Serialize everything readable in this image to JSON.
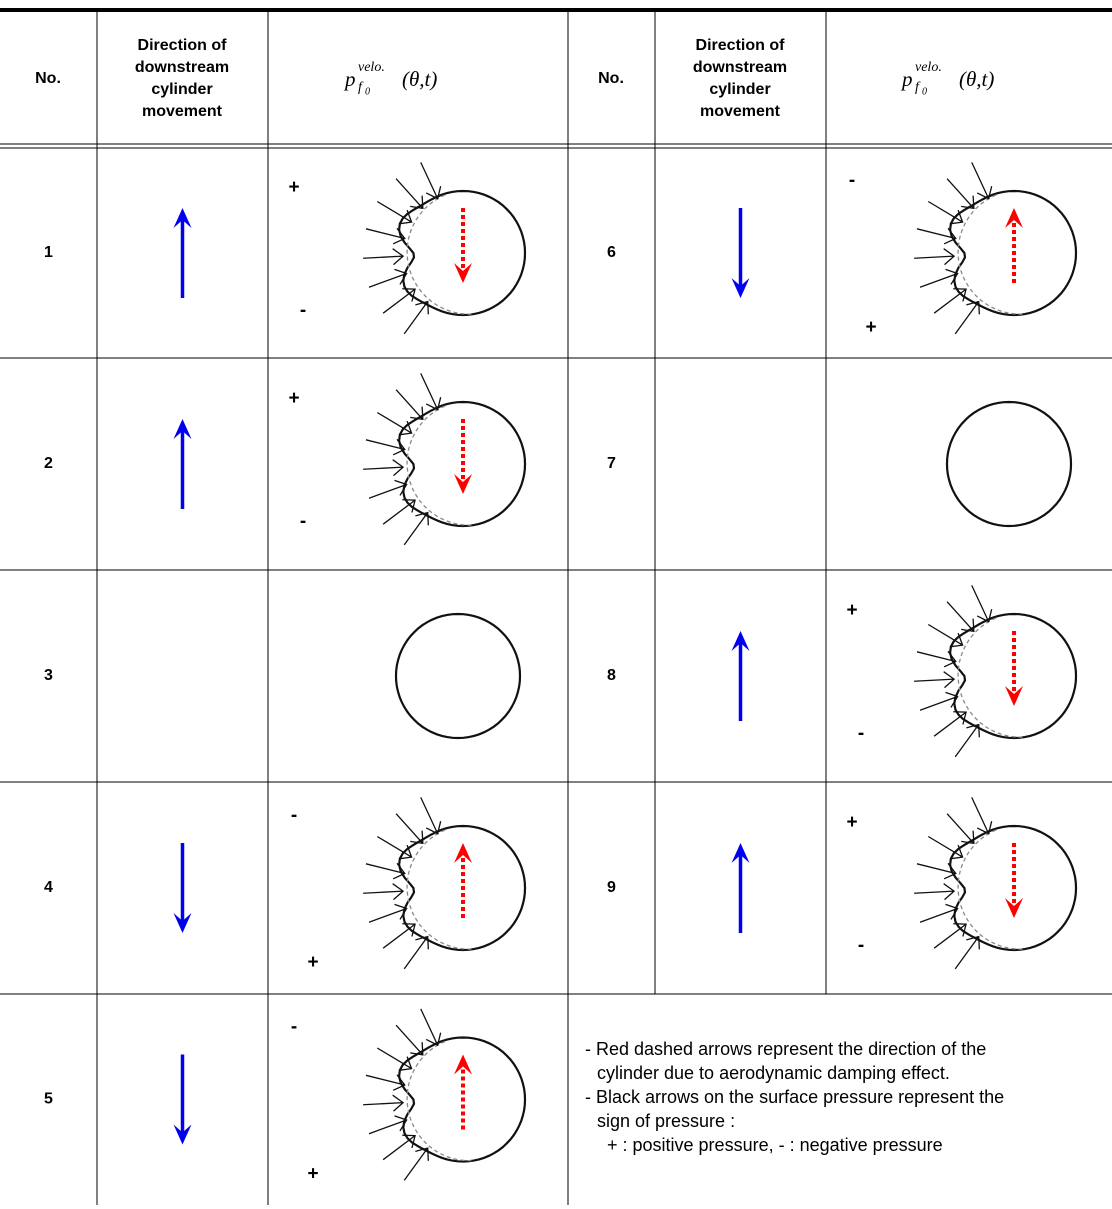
{
  "header": {
    "no": "No.",
    "direction": [
      "Direction of",
      "downstream",
      "cylinder",
      "movement"
    ],
    "formula": {
      "base": "p",
      "sup": "velo.",
      "sub": "f",
      "subsub": "0",
      "args": "(θ,t)"
    }
  },
  "rows": [
    {
      "no": "1",
      "top_sign": "+",
      "bottom_sign": "-"
    },
    {
      "no": "2",
      "top_sign": "+",
      "bottom_sign": "-"
    },
    {
      "no": "3"
    },
    {
      "no": "4",
      "top_sign": "-",
      "bottom_sign": "+"
    },
    {
      "no": "5",
      "top_sign": "-",
      "bottom_sign": "+"
    },
    {
      "no": "6",
      "top_sign": "-",
      "bottom_sign": "+"
    },
    {
      "no": "7"
    },
    {
      "no": "8",
      "top_sign": "+",
      "bottom_sign": "-"
    },
    {
      "no": "9",
      "top_sign": "+",
      "bottom_sign": "-"
    }
  ],
  "notes": [
    "- Red dashed arrows represent the direction of the",
    "cylinder due to aerodynamic damping effect.",
    "- Black arrows on the surface pressure represent the",
    "sign of pressure :",
    "+ : positive pressure, - : negative pressure"
  ]
}
